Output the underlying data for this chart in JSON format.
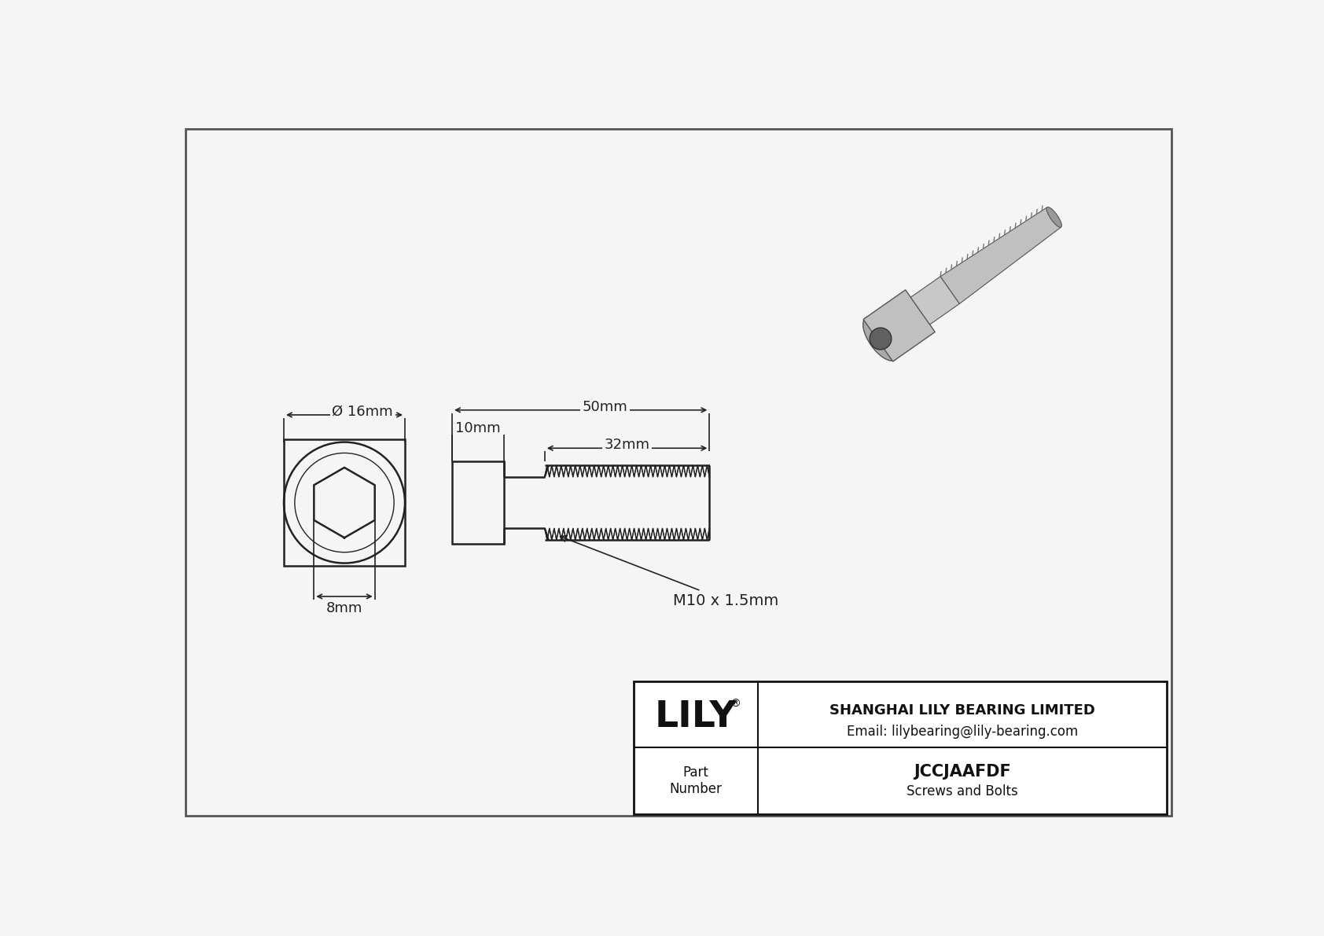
{
  "bg_color": "#f5f5f5",
  "draw_color": "#222222",
  "title_company": "SHANGHAI LILY BEARING LIMITED",
  "title_email": "Email: lilybearing@lily-bearing.com",
  "part_number": "JCCJAAFDF",
  "part_category": "Screws and Bolts",
  "part_label": "Part\nNumber",
  "dim_diameter": "Ø 16mm",
  "dim_hex": "8mm",
  "dim_head_len": "10mm",
  "dim_total": "50mm",
  "dim_thread": "32mm",
  "dim_thread_label": "M10 x 1.5mm",
  "border_color": "#555555",
  "lily_text": "LILY",
  "lily_reg": "®"
}
